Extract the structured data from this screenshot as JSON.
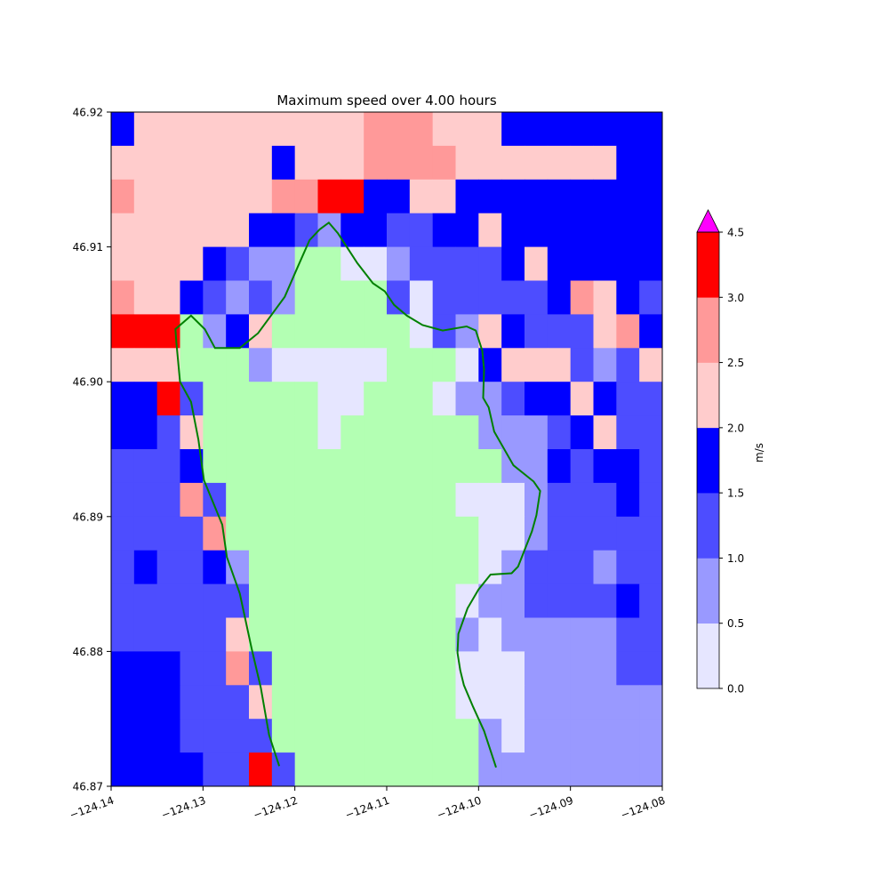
{
  "chart_data": {
    "type": "heatmap",
    "title": "Maximum speed over 4.00 hours",
    "xlabel": "",
    "ylabel": "",
    "xlim": [
      -124.14,
      -124.08
    ],
    "ylim": [
      46.87,
      46.92
    ],
    "x_ticks": [
      -124.14,
      -124.13,
      -124.12,
      -124.11,
      -124.1,
      -124.09,
      -124.08
    ],
    "x_tick_labels": [
      "−124.14",
      "−124.13",
      "−124.12",
      "−124.11",
      "−124.10",
      "−124.09",
      "−124.08"
    ],
    "y_ticks": [
      46.92,
      46.91,
      46.9,
      46.89,
      46.88,
      46.87
    ],
    "y_tick_labels": [
      "46.92",
      "46.91",
      "46.90",
      "46.89",
      "46.88",
      "46.87"
    ],
    "grid": false,
    "n_cols": 24,
    "n_rows": 20,
    "cells_legend": "rows listed top (north) to bottom (south); each char = colour bin index 0-6, g = land (masked)",
    "cells": [
      "344444444445554443333333",
      "444444434445555444444433",
      "544444455663344333333333",
      "444444332133223343333333",
      "44443211gg00122223433333",
      "54432121gggg202222235432",
      "666g134gggggg02143222453",
      "444ggg100000ggg034442124",
      "3362ggggg00ggg0112334322",
      "3324ggggg0gggggg11123422",
      "2223ggggggggggggg1132332",
      "22252gggggggggg000122232",
      "22225ggggggggggg00122222",
      "232231gggggggggg01222122",
      "222222ggggggggg011222232",
      "222224ggggggggg101111122",
      "3332252gggggggg000111122",
      "3332224gggggggg000111111",
      "3332222ggggggggg10111111",
      "33332262gggggggg11111111"
    ],
    "bin_edges": [
      0.0,
      0.5,
      1.0,
      1.5,
      2.0,
      2.5,
      3.0,
      4.5
    ],
    "bin_colors": [
      "#e6e6ff",
      "#9999ff",
      "#4d4dff",
      "#0000ff",
      "#ffcccc",
      "#ff9999",
      "#ff0000"
    ],
    "land_color": "#b3ffb3",
    "extend_max_color": "#ff00ff",
    "colorbar": {
      "label": "m/s",
      "ticks": [
        0.0,
        0.5,
        1.0,
        1.5,
        2.0,
        2.5,
        3.0,
        4.5
      ],
      "tick_labels": [
        "0.0",
        "0.5",
        "1.0",
        "1.5",
        "2.0",
        "2.5",
        "3.0",
        "4.5"
      ],
      "placement": "right"
    },
    "coastline": {
      "color": "#008000",
      "points": [
        [
          -124.1217,
          46.8715
        ],
        [
          -124.1228,
          46.8738
        ],
        [
          -124.1237,
          46.8773
        ],
        [
          -124.1247,
          46.8802
        ],
        [
          -124.126,
          46.8843
        ],
        [
          -124.1274,
          46.887
        ],
        [
          -124.1279,
          46.8894
        ],
        [
          -124.1299,
          46.8927
        ],
        [
          -124.1305,
          46.8957
        ],
        [
          -124.1313,
          46.8985
        ],
        [
          -124.1325,
          46.9
        ],
        [
          -124.1329,
          46.9029
        ],
        [
          -124.133,
          46.9039
        ],
        [
          -124.1313,
          46.9049
        ],
        [
          -124.1298,
          46.9039
        ],
        [
          -124.1287,
          46.9025
        ],
        [
          -124.126,
          46.9025
        ],
        [
          -124.124,
          46.9036
        ],
        [
          -124.1211,
          46.9063
        ],
        [
          -124.1197,
          46.9085
        ],
        [
          -124.1184,
          46.9105
        ],
        [
          -124.1173,
          46.9113
        ],
        [
          -124.1163,
          46.9118
        ],
        [
          -124.1153,
          46.911
        ],
        [
          -124.1132,
          46.9088
        ],
        [
          -124.1115,
          46.9073
        ],
        [
          -124.1102,
          46.9067
        ],
        [
          -124.1092,
          46.9057
        ],
        [
          -124.1078,
          46.9049
        ],
        [
          -124.1061,
          46.9042
        ],
        [
          -124.1039,
          46.9038
        ],
        [
          -124.1013,
          46.9041
        ],
        [
          -124.1003,
          46.9038
        ],
        [
          -124.0996,
          46.9023
        ],
        [
          -124.0994,
          46.9009
        ],
        [
          -124.0995,
          46.8988
        ],
        [
          -124.0989,
          46.8981
        ],
        [
          -124.0983,
          46.8963
        ],
        [
          -124.0962,
          46.8938
        ],
        [
          -124.094,
          46.8926
        ],
        [
          -124.0933,
          46.8919
        ],
        [
          -124.0937,
          46.8901
        ],
        [
          -124.0942,
          46.8889
        ],
        [
          -124.0957,
          46.8863
        ],
        [
          -124.0964,
          46.8858
        ],
        [
          -124.0987,
          46.8857
        ],
        [
          -124.1,
          46.8846
        ],
        [
          -124.1012,
          46.8832
        ],
        [
          -124.1022,
          46.8813
        ],
        [
          -124.1023,
          46.8799
        ],
        [
          -124.102,
          46.8786
        ],
        [
          -124.1016,
          46.8775
        ],
        [
          -124.1006,
          46.8759
        ],
        [
          -124.0994,
          46.8741
        ],
        [
          -124.0981,
          46.8714
        ]
      ]
    }
  }
}
